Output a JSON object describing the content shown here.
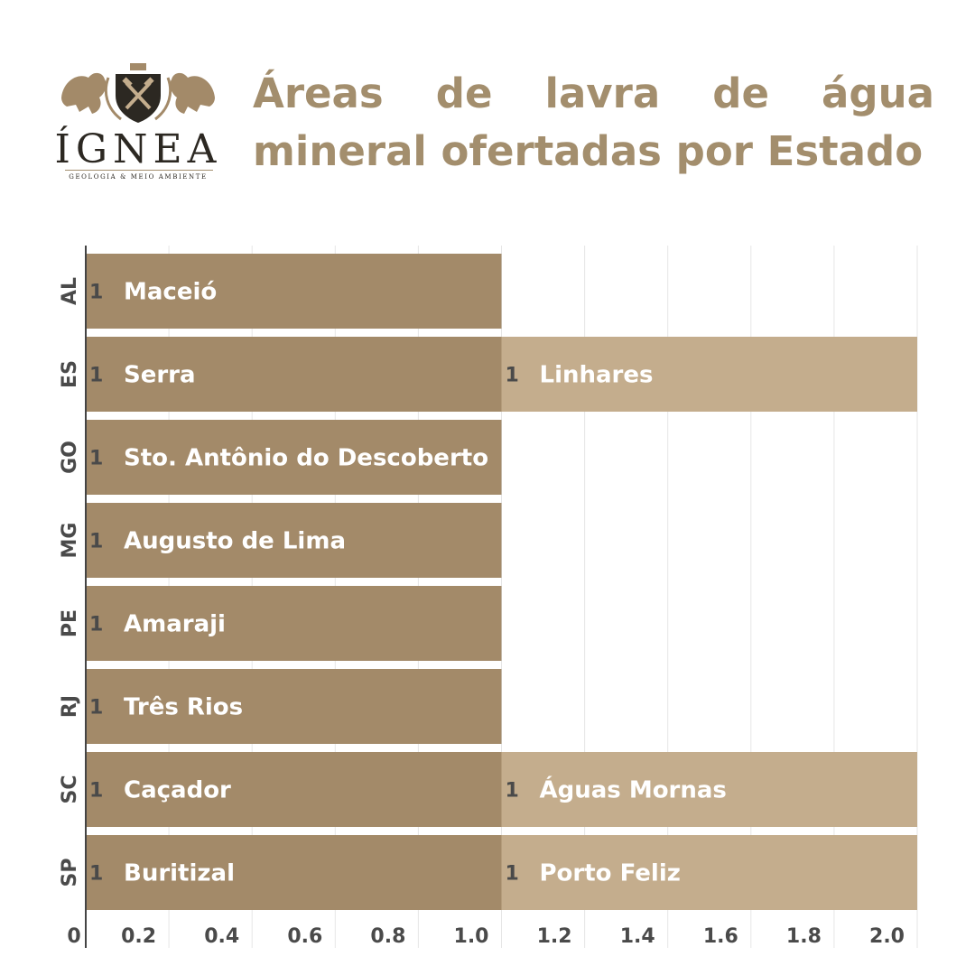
{
  "logo": {
    "name": "ÍGNEA",
    "tagline": "GEOLOGIA & MEIO AMBIENTE"
  },
  "title": "Áreas de lavra de água mineral ofertadas por Estado",
  "colors": {
    "series1": "#a38a69",
    "series2": "#c4ad8d",
    "title": "#a38e6d",
    "grid": "#e6e6e6",
    "axis": "#444444",
    "text": "#4a4a4a"
  },
  "chart_data": {
    "type": "bar",
    "orientation": "horizontal",
    "stacked": true,
    "categories": [
      "AL",
      "ES",
      "GO",
      "MG",
      "PE",
      "RJ",
      "SC",
      "SP"
    ],
    "series": [
      {
        "values": [
          1,
          1,
          1,
          1,
          1,
          1,
          1,
          1
        ],
        "labels": [
          "Maceió",
          "Serra",
          "Sto. Antônio do Descoberto",
          "Augusto de Lima",
          "Amaraji",
          "Três Rios",
          "Caçador",
          "Buritizal"
        ]
      },
      {
        "values": [
          0,
          1,
          0,
          0,
          0,
          0,
          1,
          1
        ],
        "labels": [
          "",
          "Linhares",
          "",
          "",
          "",
          "",
          "Águas Mornas",
          "Porto Feliz"
        ]
      }
    ],
    "xlim": [
      0,
      2.0
    ],
    "xticks": [
      "0",
      "0.2",
      "0.4",
      "0.6",
      "0.8",
      "1.0",
      "1.2",
      "1.4",
      "1.6",
      "1.8",
      "2.0"
    ],
    "grid": true
  }
}
